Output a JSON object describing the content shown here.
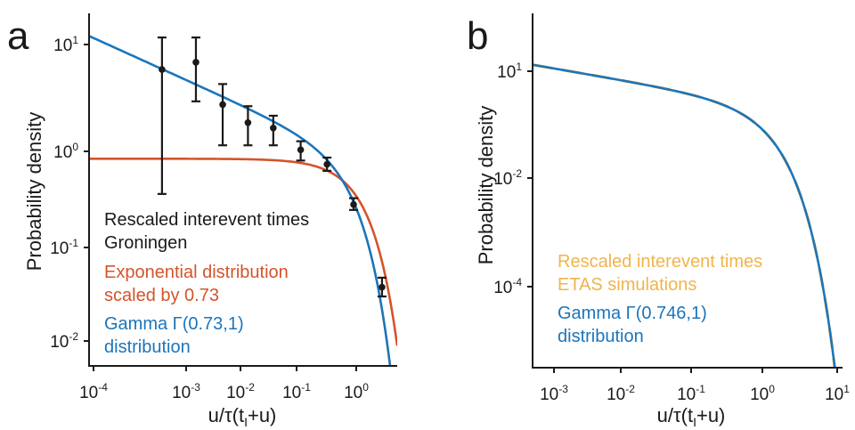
{
  "chart_data": [
    {
      "panel": "a",
      "type": "scatter",
      "xlabel": "u/τ(t_I+u)",
      "ylabel": "Probability density",
      "xscale": "log",
      "yscale": "log",
      "xlim": [
        3.3e-05,
        6.0
      ],
      "ylim": [
        0.0057,
        22
      ],
      "x_ticks": [
        "10^-4",
        "10^-3",
        "10^-2",
        "10^-1",
        "10^0"
      ],
      "y_ticks": [
        "10^-2",
        "10^-1",
        "10^0",
        "10^1"
      ],
      "series": [
        {
          "name": "Rescaled interevent times Groningen",
          "kind": "points_with_errorbars",
          "color": "#1a1a1a",
          "x": [
            0.00058,
            0.0022,
            0.0063,
            0.017,
            0.046,
            0.135,
            0.38,
            1.08,
            3.3
          ],
          "y": [
            5.9,
            7.0,
            2.6,
            1.7,
            1.5,
            0.9,
            0.64,
            0.25,
            0.036
          ],
          "y_low": [
            0.32,
            2.8,
            1.0,
            1.0,
            1.0,
            0.7,
            0.55,
            0.22,
            0.029
          ],
          "y_high": [
            12.5,
            12.5,
            4.2,
            2.5,
            2.0,
            1.1,
            0.75,
            0.29,
            0.045
          ]
        },
        {
          "name": "Exponential distribution scaled by 0.73",
          "kind": "curve",
          "function": "exponential",
          "scale": 0.73,
          "color": "#d4542a"
        },
        {
          "name": "Gamma Γ(0.73,1) distribution",
          "kind": "curve",
          "function": "gamma",
          "shape": 0.73,
          "rate": 1,
          "color": "#1b75bb"
        }
      ],
      "legend_placement": "bottom-left"
    },
    {
      "panel": "b",
      "type": "line",
      "xlabel": "u/τ(t_I+u)",
      "ylabel": "Probability density",
      "xscale": "log",
      "yscale": "log",
      "xlim": [
        0.0008,
        15
      ],
      "ylim": [
        3.5e-06,
        55
      ],
      "x_ticks": [
        "10^-3",
        "10^-2",
        "10^-1",
        "10^0",
        "10^1"
      ],
      "y_ticks": [
        "10^-4",
        "10^-2",
        "10^1"
      ],
      "series": [
        {
          "name": "Rescaled interevent times ETAS simulations",
          "kind": "curve",
          "function": "gamma",
          "shape": 0.746,
          "rate": 1,
          "dashed": true,
          "color": "#f0b44b"
        },
        {
          "name": "Gamma Γ(0.746,1) distribution",
          "kind": "curve",
          "function": "gamma",
          "shape": 0.746,
          "rate": 1,
          "color": "#1b75bb"
        }
      ],
      "legend_placement": "bottom-left"
    }
  ]
}
